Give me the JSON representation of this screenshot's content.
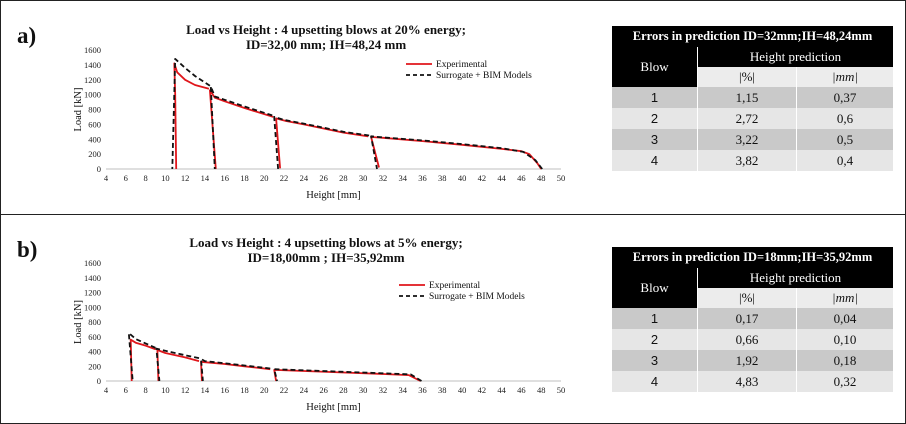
{
  "panels": [
    {
      "label": "a)",
      "title_line1": "Load vs Height : 4 upsetting blows at 20% energy;",
      "title_line2": "ID=32,00 mm; IH=48,24 mm",
      "table": {
        "title": "Errors in prediction ID=32mm;IH=48,24mm",
        "blow_header": "Blow",
        "group_header": "Height prediction",
        "unit_pct": "|%|",
        "unit_mm": "|mm|",
        "rows": [
          {
            "blow": "1",
            "pct": "1,15",
            "mm": "0,37"
          },
          {
            "blow": "2",
            "pct": "2,72",
            "mm": "0,6"
          },
          {
            "blow": "3",
            "pct": "3,22",
            "mm": "0,5"
          },
          {
            "blow": "4",
            "pct": "3,82",
            "mm": "0,4"
          }
        ]
      }
    },
    {
      "label": "b)",
      "title_line1": "Load vs Height : 4 upsetting blows at 5% energy;",
      "title_line2": "ID=18,00mm ; IH=35,92mm",
      "table": {
        "title": "Errors in prediction ID=18mm;IH=35,92mm",
        "blow_header": "Blow",
        "group_header": "Height prediction",
        "unit_pct": "|%|",
        "unit_mm": "|mm|",
        "rows": [
          {
            "blow": "1",
            "pct": "0,17",
            "mm": "0,04"
          },
          {
            "blow": "2",
            "pct": "0,66",
            "mm": "0,10"
          },
          {
            "blow": "3",
            "pct": "1,92",
            "mm": "0,18"
          },
          {
            "blow": "4",
            "pct": "4,83",
            "mm": "0,32"
          }
        ]
      }
    }
  ],
  "chart_data": [
    {
      "type": "line",
      "title": "Load vs Height : 4 upsetting blows at 20% energy; ID=32,00 mm; IH=48,24 mm",
      "xlabel": "Height [mm]",
      "ylabel": "Load [kN]",
      "xlim": [
        4,
        50
      ],
      "ylim": [
        0,
        1600
      ],
      "xticks": [
        4,
        6,
        8,
        10,
        12,
        14,
        16,
        18,
        20,
        22,
        24,
        26,
        28,
        30,
        32,
        34,
        36,
        38,
        40,
        42,
        44,
        46,
        48,
        50
      ],
      "yticks": [
        0,
        200,
        400,
        600,
        800,
        1000,
        1200,
        1400,
        1600
      ],
      "grid": false,
      "legend": "top-right",
      "series": [
        {
          "name": "Experimental",
          "color": "#e0161b",
          "dash": "solid",
          "segments": [
            [
              [
                48.0,
                0
              ],
              [
                47.6,
                80
              ],
              [
                46.8,
                200
              ],
              [
                46.0,
                240
              ],
              [
                44,
                270
              ],
              [
                40,
                325
              ],
              [
                36,
                375
              ],
              [
                32,
                420
              ],
              [
                30.8,
                430
              ],
              [
                31.6,
                20
              ]
            ],
            [
              [
                30.5,
                440
              ],
              [
                28,
                490
              ],
              [
                26,
                545
              ],
              [
                24,
                600
              ],
              [
                22.2,
                645
              ],
              [
                21.2,
                680
              ],
              [
                21.6,
                10
              ]
            ],
            [
              [
                20.9,
                700
              ],
              [
                18,
                820
              ],
              [
                16,
                910
              ],
              [
                15.0,
                960
              ],
              [
                14.5,
                1060
              ],
              [
                15.1,
                0
              ]
            ],
            [
              [
                14.4,
                1080
              ],
              [
                13,
                1130
              ],
              [
                12,
                1200
              ],
              [
                11.2,
                1300
              ],
              [
                10.9,
                1420
              ],
              [
                11.0,
                1000
              ],
              [
                11.1,
                0
              ]
            ]
          ]
        },
        {
          "name": "Surrogate + BIM Models",
          "color": "#111111",
          "dash": "dashed",
          "segments": [
            [
              [
                48.1,
                0
              ],
              [
                47.4,
                120
              ],
              [
                46.2,
                230
              ],
              [
                44,
                280
              ],
              [
                40,
                335
              ],
              [
                36,
                385
              ],
              [
                32,
                425
              ],
              [
                30.8,
                440
              ],
              [
                31.4,
                0
              ]
            ],
            [
              [
                30.6,
                450
              ],
              [
                28,
                500
              ],
              [
                26,
                555
              ],
              [
                24,
                610
              ],
              [
                22,
                660
              ],
              [
                21.0,
                700
              ],
              [
                21.4,
                0
              ]
            ],
            [
              [
                20.8,
                720
              ],
              [
                18,
                840
              ],
              [
                16,
                930
              ],
              [
                15.0,
                975
              ],
              [
                14.6,
                1110
              ],
              [
                15.0,
                0
              ]
            ],
            [
              [
                14.5,
                1120
              ],
              [
                13,
                1250
              ],
              [
                12,
                1360
              ],
              [
                11.0,
                1480
              ],
              [
                10.7,
                0
              ]
            ]
          ]
        }
      ]
    },
    {
      "type": "line",
      "title": "Load vs Height : 4 upsetting blows at 5% energy; ID=18,00mm ; IH=35,92mm",
      "xlabel": "Height [mm]",
      "ylabel": "Load [kN]",
      "xlim": [
        4,
        50
      ],
      "ylim": [
        0,
        1600
      ],
      "xticks": [
        4,
        6,
        8,
        10,
        12,
        14,
        16,
        18,
        20,
        22,
        24,
        26,
        28,
        30,
        32,
        34,
        36,
        38,
        40,
        42,
        44,
        46,
        48,
        50
      ],
      "yticks": [
        0,
        200,
        400,
        600,
        800,
        1000,
        1200,
        1400,
        1600
      ],
      "grid": false,
      "legend": "top-right",
      "series": [
        {
          "name": "Experimental",
          "color": "#e0161b",
          "dash": "solid",
          "segments": [
            [
              [
                35.8,
                0
              ],
              [
                34.6,
                80
              ],
              [
                32,
                95
              ],
              [
                28,
                115
              ],
              [
                24,
                135
              ],
              [
                21.0,
                150
              ],
              [
                21.2,
                0
              ]
            ],
            [
              [
                20.6,
                160
              ],
              [
                18,
                200
              ],
              [
                16,
                230
              ],
              [
                14,
                255
              ],
              [
                13.6,
                260
              ],
              [
                13.7,
                0
              ]
            ],
            [
              [
                13.4,
                270
              ],
              [
                12,
                320
              ],
              [
                10,
                380
              ],
              [
                9.2,
                420
              ],
              [
                9.3,
                0
              ]
            ],
            [
              [
                9.0,
                430
              ],
              [
                8,
                480
              ],
              [
                7,
                520
              ],
              [
                6.5,
                560
              ],
              [
                6.6,
                0
              ]
            ]
          ]
        },
        {
          "name": "Surrogate + BIM Models",
          "color": "#111111",
          "dash": "dashed",
          "segments": [
            [
              [
                35.9,
                0
              ],
              [
                34.8,
                90
              ],
              [
                32,
                105
              ],
              [
                28,
                125
              ],
              [
                24,
                145
              ],
              [
                21.0,
                160
              ],
              [
                21.3,
                0
              ]
            ],
            [
              [
                20.6,
                170
              ],
              [
                18,
                210
              ],
              [
                16,
                240
              ],
              [
                14,
                270
              ],
              [
                13.6,
                300
              ],
              [
                13.8,
                0
              ]
            ],
            [
              [
                13.4,
                310
              ],
              [
                12,
                350
              ],
              [
                10,
                410
              ],
              [
                9.1,
                440
              ],
              [
                9.4,
                0
              ]
            ],
            [
              [
                9.0,
                450
              ],
              [
                8,
                510
              ],
              [
                7,
                570
              ],
              [
                6.3,
                650
              ],
              [
                6.7,
                0
              ]
            ]
          ]
        }
      ]
    }
  ]
}
